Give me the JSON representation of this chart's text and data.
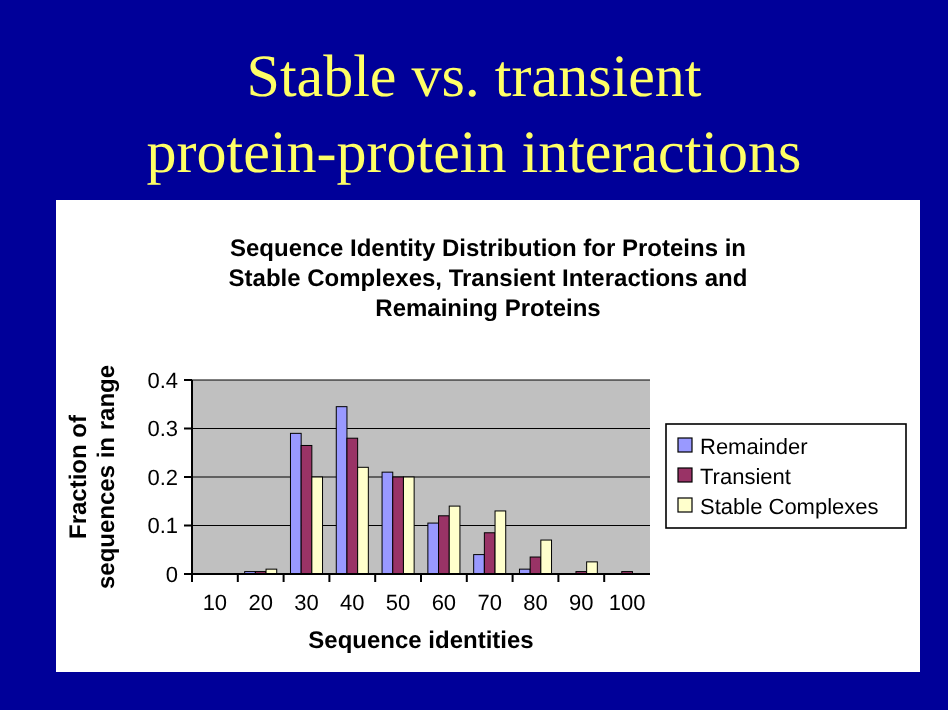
{
  "chart_data": {
    "type": "bar",
    "title": "Stable vs. transient protein-protein interactions",
    "subtitle": "Sequence Identity Distribution for Proteins in Stable Complexes, Transient Interactions and Remaining Proteins",
    "xlabel": "Sequence identities",
    "ylabel": "Fraction of sequences in range",
    "categories": [
      "10",
      "20",
      "30",
      "40",
      "50",
      "60",
      "70",
      "80",
      "90",
      "100"
    ],
    "series": [
      {
        "name": "Remainder",
        "color": "#9999ff",
        "values": [
          0,
          0.005,
          0.29,
          0.345,
          0.21,
          0.105,
          0.04,
          0.01,
          0,
          0
        ]
      },
      {
        "name": "Transient",
        "color": "#993366",
        "values": [
          0,
          0.005,
          0.265,
          0.28,
          0.2,
          0.12,
          0.085,
          0.035,
          0.005,
          0.005
        ]
      },
      {
        "name": "Stable Complexes",
        "color": "#ffffcc",
        "values": [
          0,
          0.01,
          0.2,
          0.22,
          0.2,
          0.14,
          0.13,
          0.07,
          0.025,
          0
        ]
      }
    ],
    "ylim": [
      0,
      0.4
    ],
    "yticks": [
      0,
      0.1,
      0.2,
      0.3,
      0.4
    ],
    "grid": "y",
    "legend": "right"
  }
}
